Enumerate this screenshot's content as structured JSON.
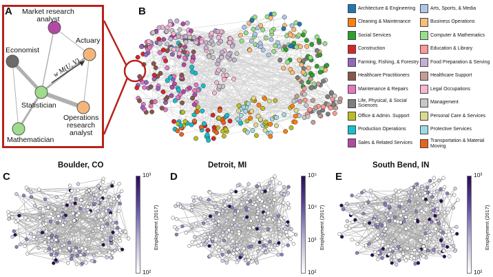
{
  "panels": {
    "a": "A",
    "b": "B",
    "c": "C",
    "d": "D",
    "e": "E"
  },
  "panelA": {
    "nodes": [
      {
        "label": "Market research\nanalyst",
        "color": "#b24aa5"
      },
      {
        "label": "Actuary",
        "color": "#f5b57a"
      },
      {
        "label": "Economist",
        "color": "#6b6b6b"
      },
      {
        "label": "Statistician",
        "color": "#9edb8c"
      },
      {
        "label": "Operations\nresearch\nanalyst",
        "color": "#f5b57a"
      },
      {
        "label": "Mathematician",
        "color": "#9edb8c"
      }
    ],
    "edge_formula": "w M(U, V)",
    "frame_color": "#b8211a"
  },
  "legend": {
    "items": [
      {
        "label": "Architecture & Engineering",
        "color": "#1f77b4"
      },
      {
        "label": "Arts, Sports, & Media",
        "color": "#aec7e8"
      },
      {
        "label": "Cleaning & Maintenance",
        "color": "#ff7f0e"
      },
      {
        "label": "Business Operations",
        "color": "#ffbb78"
      },
      {
        "label": "Social Services",
        "color": "#2ca02c"
      },
      {
        "label": "Computer & Mathematics",
        "color": "#98df8a"
      },
      {
        "label": "Construction",
        "color": "#d62728"
      },
      {
        "label": "Education & Library",
        "color": "#ff9896"
      },
      {
        "label": "Farming, Fishing, & Forestry",
        "color": "#9467bd"
      },
      {
        "label": "Food Preparation & Serving",
        "color": "#c5b0d5"
      },
      {
        "label": "Healthcare Practitioners",
        "color": "#8c564b"
      },
      {
        "label": "Healthcare Support",
        "color": "#c49c94"
      },
      {
        "label": "Maintenance & Repairs",
        "color": "#e377c2"
      },
      {
        "label": "Legal Occupations",
        "color": "#f7b6d2"
      },
      {
        "label": "Life, Physical, & Social Sciences",
        "color": "#7f7f7f"
      },
      {
        "label": "Management",
        "color": "#c7c7c7"
      },
      {
        "label": "Office & Admin. Support",
        "color": "#bcbd22"
      },
      {
        "label": "Personal Care & Services",
        "color": "#dbdb8d"
      },
      {
        "label": "Production Operations",
        "color": "#17becf"
      },
      {
        "label": "Protective Services",
        "color": "#9edae5"
      },
      {
        "label": "Sales & Related Services",
        "color": "#b24aa5"
      },
      {
        "label": "Transportation & Material Moving",
        "color": "#e8641e"
      }
    ]
  },
  "cities": [
    {
      "title": "Boulder, CO",
      "ticks": [
        "10³",
        "10²"
      ]
    },
    {
      "title": "Detroit, MI",
      "ticks": [
        "10⁵",
        "10⁴",
        "10³",
        "10²"
      ]
    },
    {
      "title": "South Bend, IN",
      "ticks": [
        "10³",
        "10²"
      ]
    }
  ],
  "colorbar_label": "Employment (2017)",
  "colors": {
    "highlight": "#b8211a",
    "edge": "#c8c8c8",
    "node_dark": "#2a0b57",
    "node_light": "#ffffff"
  }
}
